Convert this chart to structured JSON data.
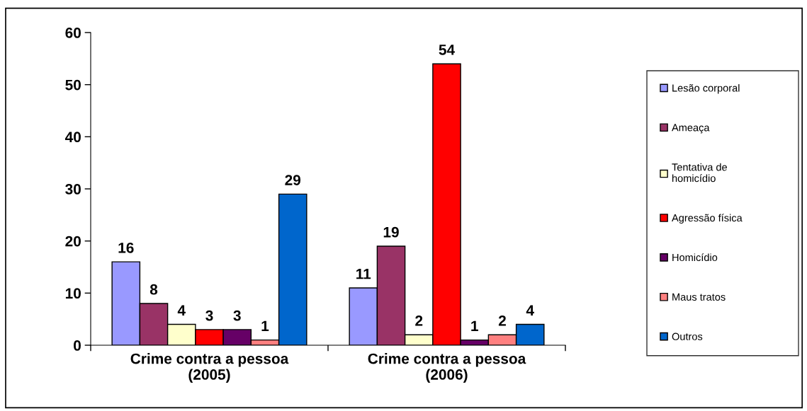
{
  "chart_data": {
    "type": "bar",
    "categories": [
      "Crime contra a pessoa\n(2005)",
      "Crime contra a pessoa\n(2006)"
    ],
    "series": [
      {
        "name": "Lesão corporal",
        "color": "#9999ff",
        "values": [
          16,
          11
        ]
      },
      {
        "name": "Ameaça",
        "color": "#993366",
        "values": [
          8,
          19
        ]
      },
      {
        "name": "Tentativa de\nhomicídio",
        "color": "#ffffcc",
        "values": [
          4,
          2
        ]
      },
      {
        "name": "Agressão física",
        "color": "#ff0000",
        "values": [
          3,
          54
        ]
      },
      {
        "name": "Homicídio",
        "color": "#660066",
        "values": [
          3,
          1
        ]
      },
      {
        "name": "Maus tratos",
        "color": "#ff8080",
        "values": [
          1,
          2
        ]
      },
      {
        "name": "Outros",
        "color": "#0066cc",
        "values": [
          29,
          4
        ]
      }
    ],
    "ylim": [
      0,
      60
    ],
    "yticks": [
      0,
      10,
      20,
      30,
      40,
      50,
      60
    ],
    "data_labels": true,
    "grid": false,
    "legend": "right"
  }
}
